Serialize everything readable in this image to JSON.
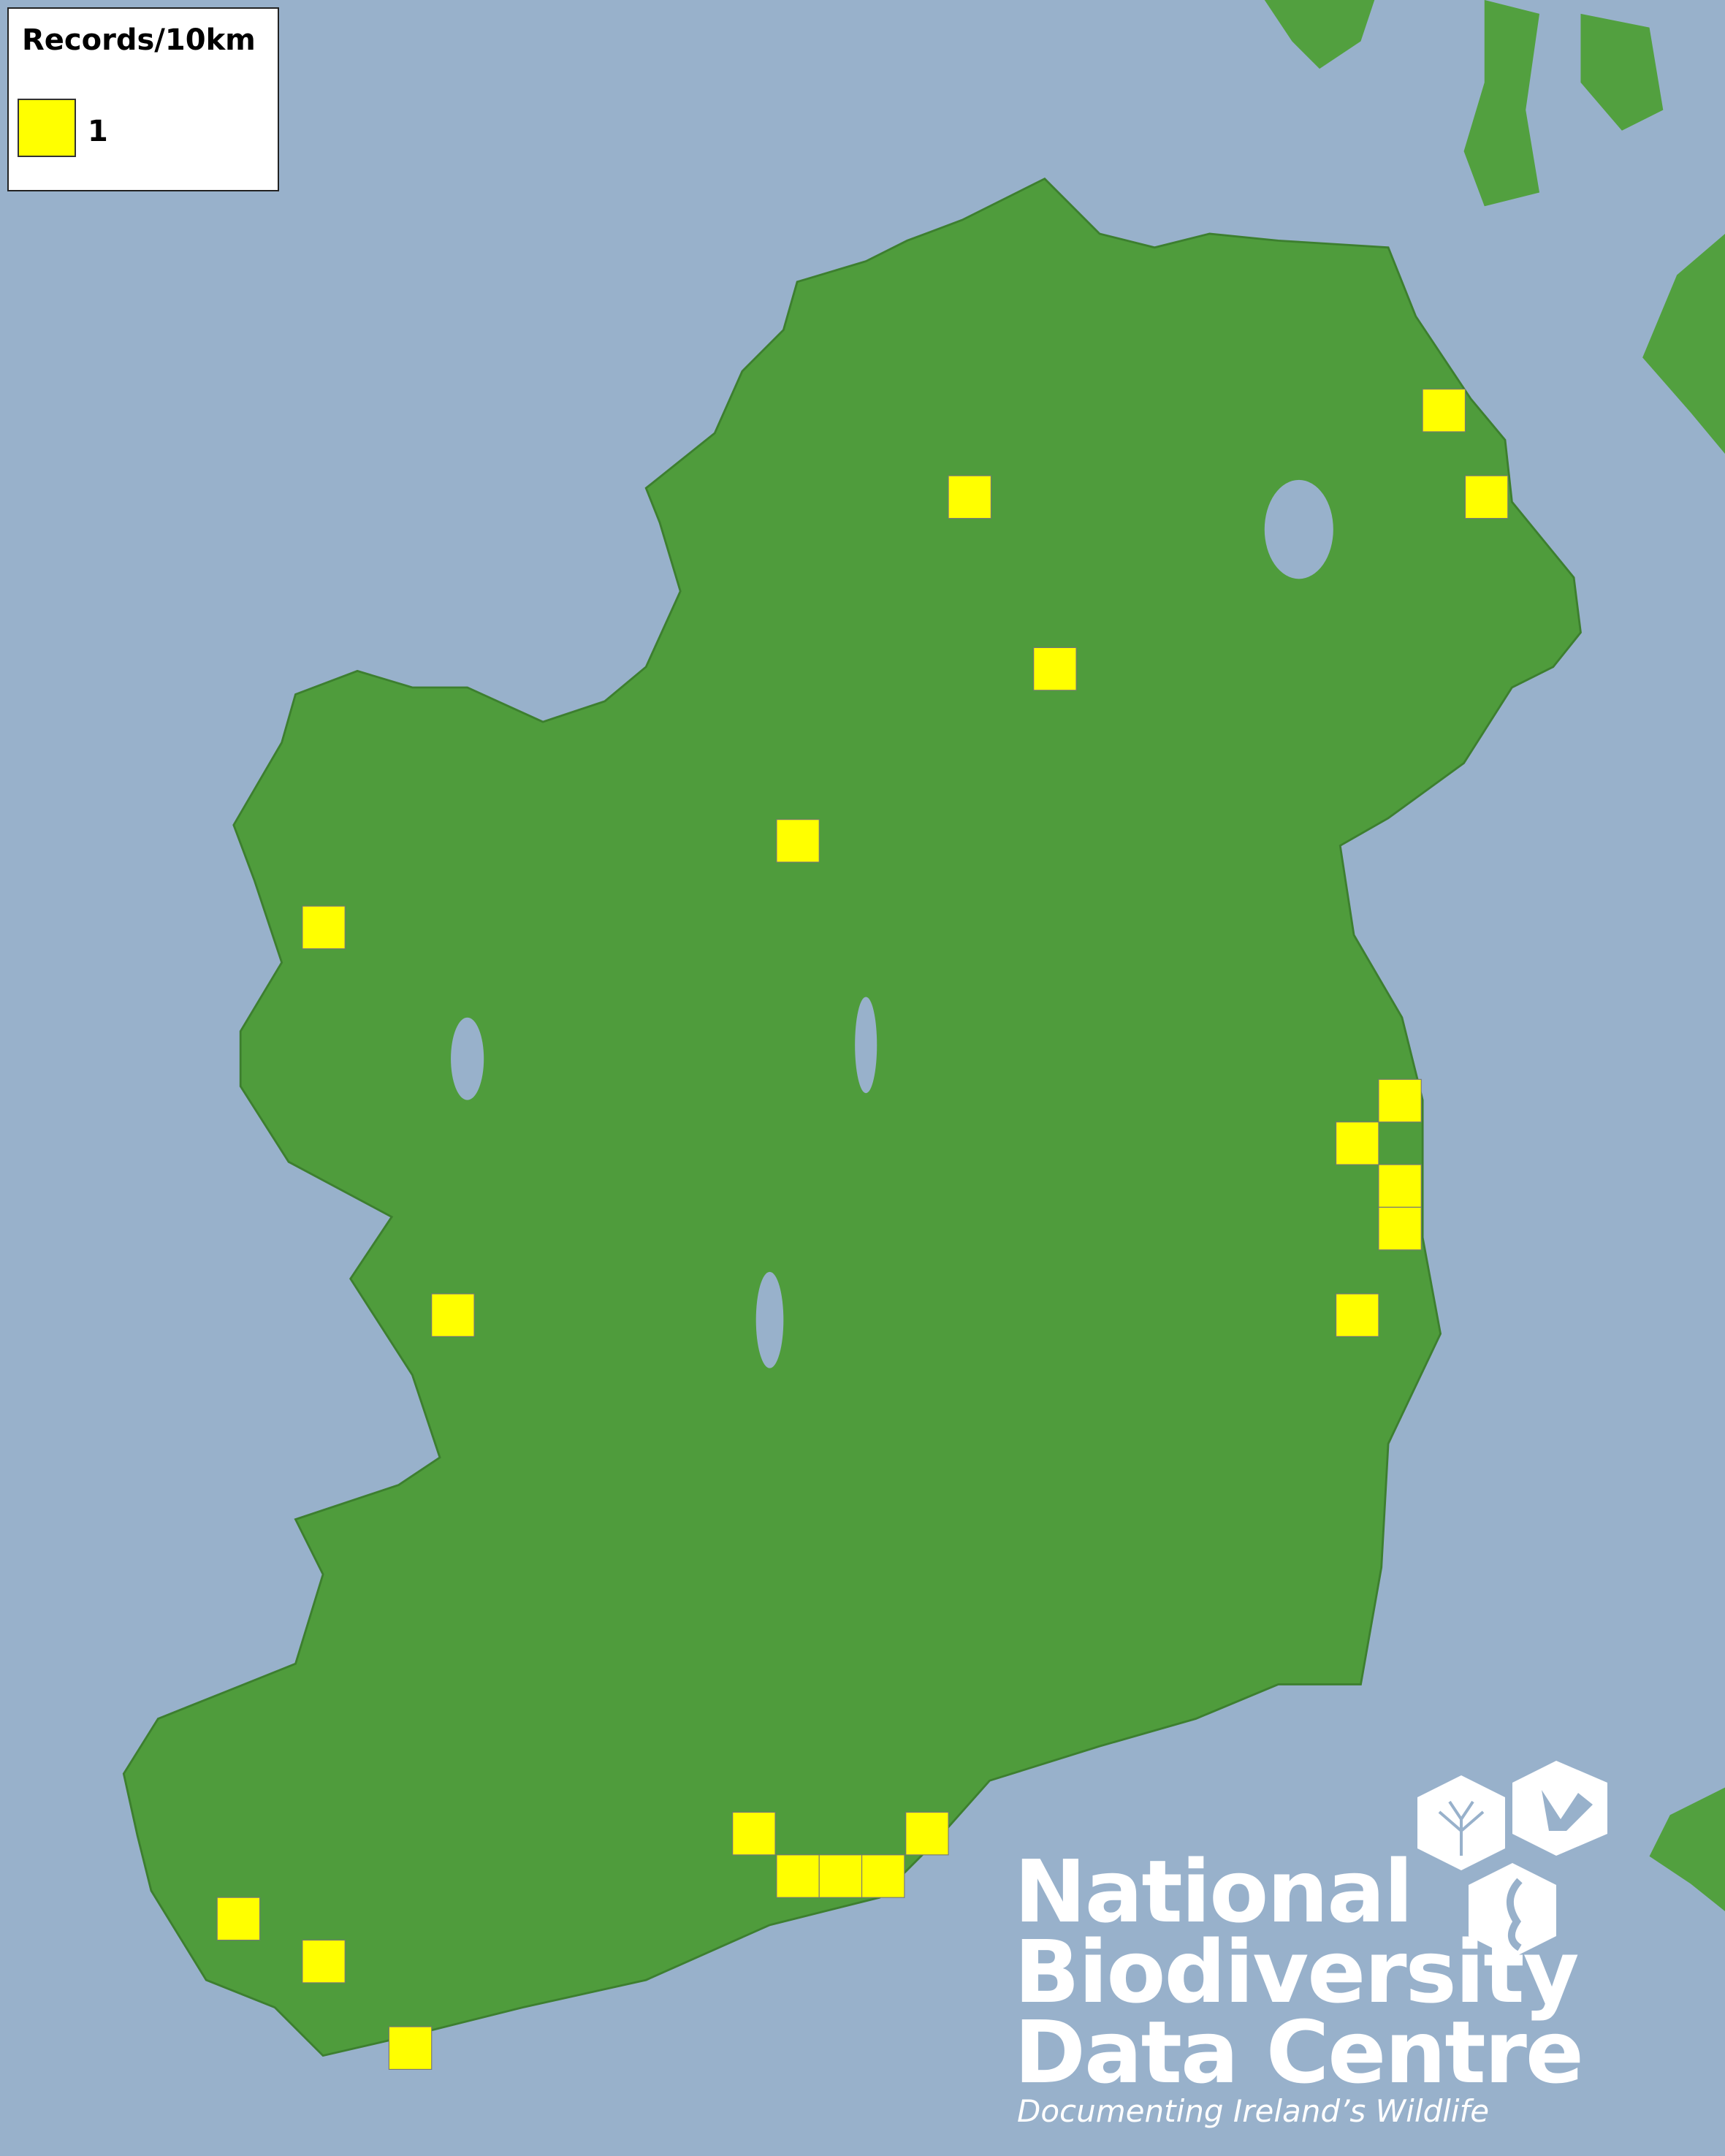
{
  "legend": {
    "title": "Records/10km",
    "items": [
      {
        "label": "1",
        "color": "#ffff00"
      }
    ]
  },
  "map": {
    "sea_color": "#98b1cb",
    "land_color": "#4a9a3a",
    "record_square_color": "#ffff00"
  },
  "logo": {
    "line1": "National",
    "line2": "Biodiversity",
    "line3": "Data Centre",
    "tagline": "Documenting Ireland’s Wildlife"
  }
}
